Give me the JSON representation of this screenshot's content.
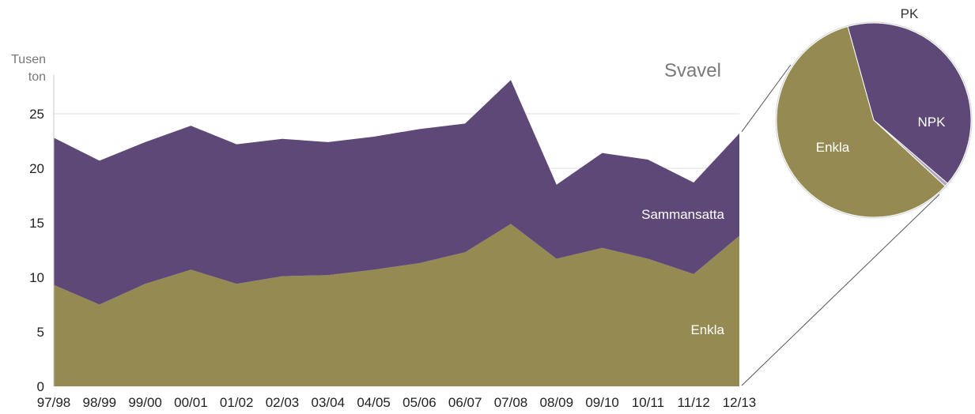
{
  "chart_data": [
    {
      "type": "area",
      "stacked": true,
      "title": "Svavel",
      "ylabel": "Tusen ton",
      "ylabel_lines": [
        "Tusen",
        "ton"
      ],
      "ylim": [
        0,
        28
      ],
      "yticks": [
        0,
        5,
        10,
        15,
        20,
        25
      ],
      "grid": "horizontal",
      "x": [
        "97/98",
        "98/99",
        "99/00",
        "00/01",
        "01/02",
        "02/03",
        "03/04",
        "04/05",
        "05/06",
        "06/07",
        "07/08",
        "08/09",
        "09/10",
        "10/11",
        "11/12",
        "12/13"
      ],
      "series": [
        {
          "name": "Enkla",
          "color": "#948a52",
          "values": [
            9.3,
            7.5,
            9.4,
            10.7,
            9.4,
            10.1,
            10.2,
            10.7,
            11.3,
            12.3,
            14.9,
            11.7,
            12.7,
            11.7,
            10.3,
            13.8
          ]
        },
        {
          "name": "Sammansatta",
          "color": "#5e4878",
          "values": [
            13.5,
            13.2,
            13.0,
            13.2,
            12.8,
            12.6,
            12.2,
            12.2,
            12.3,
            11.8,
            13.2,
            6.8,
            8.7,
            9.1,
            8.4,
            9.4
          ]
        }
      ]
    },
    {
      "type": "pie",
      "period": "12/13",
      "slices": [
        {
          "label": "Enkla",
          "value": 58.8,
          "color": "#948a52"
        },
        {
          "label": "NPK",
          "value": 40.6,
          "color": "#5e4878"
        },
        {
          "label": "PK",
          "value": 0.6,
          "color": "#b0a8bd"
        }
      ]
    }
  ]
}
